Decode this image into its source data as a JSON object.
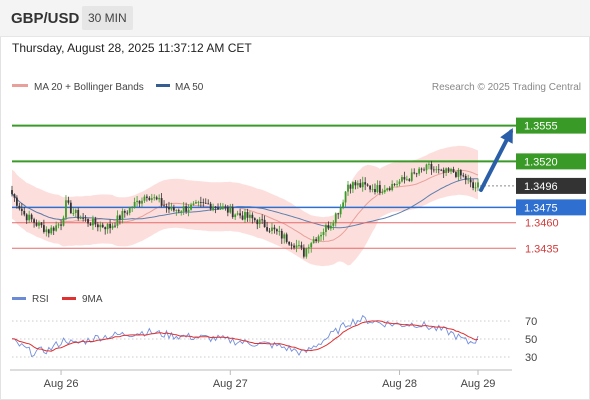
{
  "header": {
    "pair": "GBP/USD",
    "timeframe": "30 MIN",
    "datetime": "Thursday, August 28, 2025 11:37:12 AM CET"
  },
  "legend": {
    "ma20": "MA 20 + Bollinger Bands",
    "ma50": "MA 50",
    "copyright": "Research © 2025 Trading Central",
    "rsi": "RSI",
    "rsi_ma": "9MA"
  },
  "colors": {
    "up": "#3a9a27",
    "down": "#333333",
    "ma20": "#e9a09a",
    "band_fill": "#fbd9d6",
    "ma50": "#5d7fae",
    "resistance": "#3a9a27",
    "pivot": "#2f6fcf",
    "support": "#e46b6b",
    "last": "#333333",
    "arrow": "#2b5ea8",
    "rsi": "#7390dc",
    "rsi_ma": "#e03030"
  },
  "chart_data": [
    {
      "type": "candlestick",
      "title": "GBP/USD 30 MIN",
      "x_ticks": [
        "Aug 26",
        "Aug 27",
        "Aug 28",
        "Aug 29"
      ],
      "ylim": [
        1.3402,
        1.3582
      ],
      "levels": [
        {
          "value": 1.3555,
          "label": "1.3555",
          "kind": "resistance"
        },
        {
          "value": 1.352,
          "label": "1.3520",
          "kind": "resistance"
        },
        {
          "value": 1.3496,
          "label": "1.3496",
          "kind": "last"
        },
        {
          "value": 1.3475,
          "label": "1.3475",
          "kind": "pivot"
        },
        {
          "value": 1.346,
          "label": "1.3460",
          "kind": "support"
        },
        {
          "value": 1.3435,
          "label": "1.3435",
          "kind": "support"
        }
      ],
      "projection": {
        "from": 1.3492,
        "to": 1.3555
      },
      "series": [
        {
          "name": "MA 20 + Bollinger Bands"
        },
        {
          "name": "MA 50"
        }
      ],
      "anchors": [
        [
          0,
          1.3488
        ],
        [
          5,
          1.3468
        ],
        [
          10,
          1.3459
        ],
        [
          15,
          1.3452
        ],
        [
          20,
          1.346
        ],
        [
          22,
          1.3478
        ],
        [
          25,
          1.347
        ],
        [
          30,
          1.3462
        ],
        [
          35,
          1.3458
        ],
        [
          40,
          1.3456
        ],
        [
          45,
          1.3468
        ],
        [
          50,
          1.3478
        ],
        [
          55,
          1.3488
        ],
        [
          60,
          1.348
        ],
        [
          65,
          1.3472
        ],
        [
          70,
          1.3474
        ],
        [
          75,
          1.3476
        ],
        [
          80,
          1.3478
        ],
        [
          85,
          1.3475
        ],
        [
          90,
          1.347
        ],
        [
          95,
          1.3466
        ],
        [
          100,
          1.3462
        ],
        [
          105,
          1.3455
        ],
        [
          110,
          1.3447
        ],
        [
          115,
          1.344
        ],
        [
          119,
          1.343
        ],
        [
          121,
          1.344
        ],
        [
          125,
          1.3448
        ],
        [
          130,
          1.346
        ],
        [
          134,
          1.3476
        ],
        [
          137,
          1.3498
        ],
        [
          140,
          1.3497
        ],
        [
          145,
          1.3495
        ],
        [
          150,
          1.3493
        ],
        [
          155,
          1.3497
        ],
        [
          160,
          1.3502
        ],
        [
          165,
          1.3508
        ],
        [
          170,
          1.3514
        ],
        [
          175,
          1.3508
        ],
        [
          180,
          1.351
        ],
        [
          185,
          1.3503
        ],
        [
          188,
          1.3494
        ],
        [
          190,
          1.3496
        ]
      ]
    },
    {
      "type": "line",
      "title": "RSI",
      "series": [
        {
          "name": "RSI"
        },
        {
          "name": "9MA"
        }
      ],
      "yticks": [
        30,
        50,
        70
      ],
      "ylim": [
        20,
        80
      ],
      "anchors": [
        [
          0,
          48
        ],
        [
          8,
          35
        ],
        [
          15,
          38
        ],
        [
          22,
          50
        ],
        [
          25,
          44
        ],
        [
          35,
          52
        ],
        [
          45,
          55
        ],
        [
          55,
          58
        ],
        [
          65,
          54
        ],
        [
          75,
          52
        ],
        [
          85,
          50
        ],
        [
          95,
          46
        ],
        [
          105,
          44
        ],
        [
          112,
          40
        ],
        [
          119,
          34
        ],
        [
          125,
          45
        ],
        [
          132,
          58
        ],
        [
          137,
          68
        ],
        [
          143,
          72
        ],
        [
          150,
          68
        ],
        [
          158,
          66
        ],
        [
          165,
          67
        ],
        [
          172,
          62
        ],
        [
          178,
          58
        ],
        [
          182,
          52
        ],
        [
          186,
          46
        ],
        [
          190,
          50
        ]
      ]
    }
  ]
}
